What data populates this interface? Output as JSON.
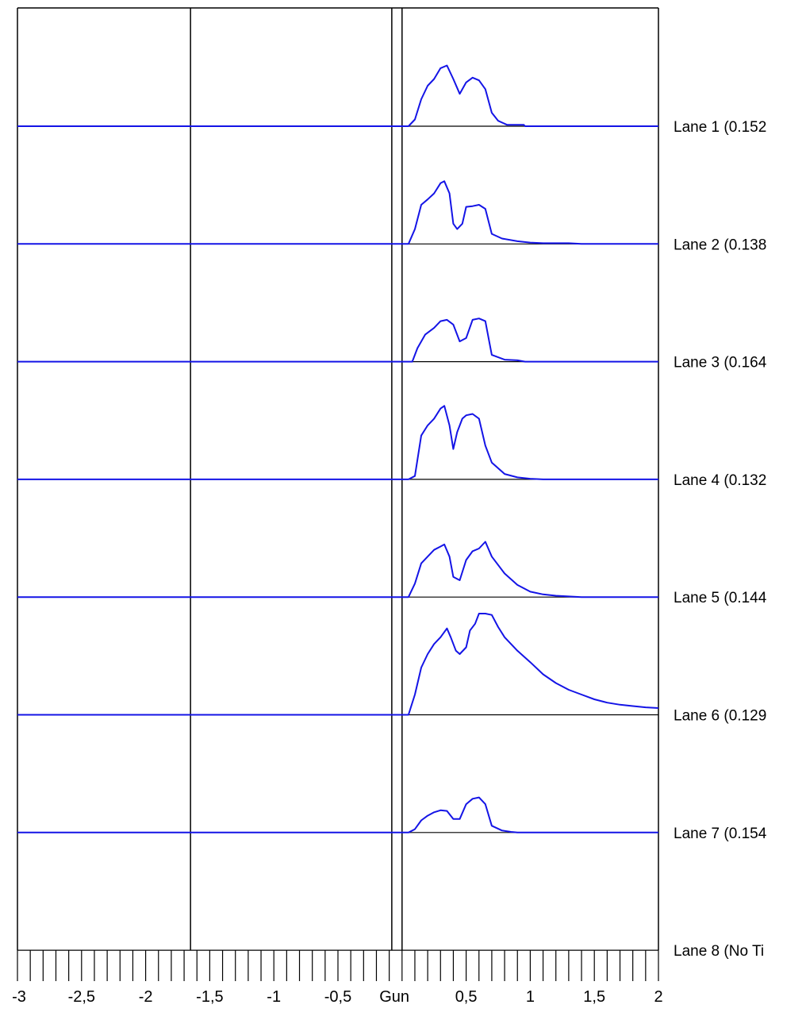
{
  "chart_data": {
    "type": "line",
    "xlim": [
      -3,
      2
    ],
    "colors": {
      "trace": "#1414e6",
      "frame": "#000000"
    },
    "x_tick_labels": [
      {
        "value": -3,
        "label": "-3"
      },
      {
        "value": -2.5,
        "label": "-2,5"
      },
      {
        "value": -2,
        "label": "-2"
      },
      {
        "value": -1.5,
        "label": "-1,5"
      },
      {
        "value": -1,
        "label": "-1"
      },
      {
        "value": -0.5,
        "label": "-0,5"
      },
      {
        "value": -0.06,
        "label": "Gun"
      },
      {
        "value": 0.5,
        "label": "0,5"
      },
      {
        "value": 1,
        "label": "1"
      },
      {
        "value": 1.5,
        "label": "1,5"
      },
      {
        "value": 2,
        "label": "2"
      }
    ],
    "minor_tick_step": 0.1,
    "vertical_markers": [
      -1.65,
      -0.08,
      0.0
    ],
    "lanes": [
      {
        "label": "Lane 1 (0.152",
        "points": [
          [
            -3,
            0
          ],
          [
            0.05,
            0
          ],
          [
            0.1,
            0.1
          ],
          [
            0.15,
            0.4
          ],
          [
            0.2,
            0.6
          ],
          [
            0.25,
            0.7
          ],
          [
            0.3,
            0.86
          ],
          [
            0.35,
            0.9
          ],
          [
            0.4,
            0.7
          ],
          [
            0.45,
            0.48
          ],
          [
            0.5,
            0.65
          ],
          [
            0.55,
            0.72
          ],
          [
            0.6,
            0.68
          ],
          [
            0.65,
            0.55
          ],
          [
            0.7,
            0.2
          ],
          [
            0.75,
            0.08
          ],
          [
            0.82,
            0.02
          ],
          [
            0.95,
            0.02
          ],
          [
            0.96,
            0
          ],
          [
            2,
            0
          ]
        ]
      },
      {
        "label": "Lane 2 (0.138",
        "points": [
          [
            -3,
            0
          ],
          [
            0.05,
            0
          ],
          [
            0.1,
            0.22
          ],
          [
            0.15,
            0.58
          ],
          [
            0.2,
            0.66
          ],
          [
            0.25,
            0.75
          ],
          [
            0.3,
            0.9
          ],
          [
            0.33,
            0.93
          ],
          [
            0.37,
            0.75
          ],
          [
            0.4,
            0.3
          ],
          [
            0.43,
            0.22
          ],
          [
            0.47,
            0.3
          ],
          [
            0.5,
            0.55
          ],
          [
            0.55,
            0.56
          ],
          [
            0.6,
            0.58
          ],
          [
            0.65,
            0.52
          ],
          [
            0.7,
            0.15
          ],
          [
            0.78,
            0.08
          ],
          [
            0.9,
            0.04
          ],
          [
            1.0,
            0.02
          ],
          [
            1.1,
            0.01
          ],
          [
            1.3,
            0.01
          ],
          [
            1.4,
            0
          ],
          [
            2,
            0
          ]
        ]
      },
      {
        "label": "Lane 3 (0.164",
        "points": [
          [
            -3,
            0
          ],
          [
            0.08,
            0
          ],
          [
            0.12,
            0.2
          ],
          [
            0.18,
            0.4
          ],
          [
            0.25,
            0.5
          ],
          [
            0.3,
            0.6
          ],
          [
            0.35,
            0.62
          ],
          [
            0.4,
            0.55
          ],
          [
            0.45,
            0.3
          ],
          [
            0.5,
            0.35
          ],
          [
            0.55,
            0.62
          ],
          [
            0.6,
            0.64
          ],
          [
            0.65,
            0.6
          ],
          [
            0.7,
            0.1
          ],
          [
            0.8,
            0.03
          ],
          [
            0.9,
            0.02
          ],
          [
            0.96,
            0
          ],
          [
            2,
            0
          ]
        ]
      },
      {
        "label": "Lane 4 (0.132",
        "points": [
          [
            -3,
            0
          ],
          [
            0.05,
            0
          ],
          [
            0.1,
            0.05
          ],
          [
            0.15,
            0.65
          ],
          [
            0.2,
            0.8
          ],
          [
            0.25,
            0.9
          ],
          [
            0.3,
            1.05
          ],
          [
            0.33,
            1.09
          ],
          [
            0.37,
            0.8
          ],
          [
            0.4,
            0.45
          ],
          [
            0.43,
            0.7
          ],
          [
            0.47,
            0.9
          ],
          [
            0.5,
            0.95
          ],
          [
            0.55,
            0.97
          ],
          [
            0.6,
            0.9
          ],
          [
            0.65,
            0.5
          ],
          [
            0.7,
            0.25
          ],
          [
            0.8,
            0.08
          ],
          [
            0.9,
            0.03
          ],
          [
            1.0,
            0.01
          ],
          [
            1.1,
            0
          ],
          [
            2,
            0
          ]
        ]
      },
      {
        "label": "Lane 5 (0.144",
        "points": [
          [
            -3,
            0
          ],
          [
            0.05,
            0
          ],
          [
            0.1,
            0.2
          ],
          [
            0.15,
            0.5
          ],
          [
            0.2,
            0.6
          ],
          [
            0.25,
            0.7
          ],
          [
            0.3,
            0.75
          ],
          [
            0.33,
            0.78
          ],
          [
            0.37,
            0.6
          ],
          [
            0.4,
            0.3
          ],
          [
            0.45,
            0.25
          ],
          [
            0.5,
            0.55
          ],
          [
            0.55,
            0.68
          ],
          [
            0.6,
            0.72
          ],
          [
            0.65,
            0.82
          ],
          [
            0.7,
            0.6
          ],
          [
            0.8,
            0.35
          ],
          [
            0.9,
            0.18
          ],
          [
            1.0,
            0.08
          ],
          [
            1.1,
            0.04
          ],
          [
            1.2,
            0.02
          ],
          [
            1.3,
            0.01
          ],
          [
            1.4,
            0
          ],
          [
            2,
            0
          ]
        ]
      },
      {
        "label": "Lane 6 (0.129",
        "points": [
          [
            -3,
            0
          ],
          [
            0.05,
            0
          ],
          [
            0.1,
            0.3
          ],
          [
            0.15,
            0.7
          ],
          [
            0.2,
            0.9
          ],
          [
            0.25,
            1.05
          ],
          [
            0.3,
            1.15
          ],
          [
            0.35,
            1.28
          ],
          [
            0.38,
            1.15
          ],
          [
            0.42,
            0.95
          ],
          [
            0.45,
            0.9
          ],
          [
            0.5,
            1.0
          ],
          [
            0.53,
            1.25
          ],
          [
            0.57,
            1.35
          ],
          [
            0.6,
            1.5
          ],
          [
            0.65,
            1.5
          ],
          [
            0.7,
            1.48
          ],
          [
            0.75,
            1.3
          ],
          [
            0.8,
            1.15
          ],
          [
            0.9,
            0.95
          ],
          [
            1.0,
            0.78
          ],
          [
            1.1,
            0.6
          ],
          [
            1.2,
            0.47
          ],
          [
            1.3,
            0.37
          ],
          [
            1.4,
            0.3
          ],
          [
            1.5,
            0.23
          ],
          [
            1.6,
            0.18
          ],
          [
            1.7,
            0.15
          ],
          [
            1.8,
            0.13
          ],
          [
            1.9,
            0.11
          ],
          [
            2.0,
            0.1
          ]
        ]
      },
      {
        "label": "Lane 7 (0.154",
        "points": [
          [
            -3,
            0
          ],
          [
            0.05,
            0
          ],
          [
            0.1,
            0.05
          ],
          [
            0.15,
            0.18
          ],
          [
            0.2,
            0.25
          ],
          [
            0.25,
            0.3
          ],
          [
            0.3,
            0.33
          ],
          [
            0.35,
            0.32
          ],
          [
            0.4,
            0.2
          ],
          [
            0.45,
            0.2
          ],
          [
            0.5,
            0.42
          ],
          [
            0.55,
            0.5
          ],
          [
            0.6,
            0.52
          ],
          [
            0.65,
            0.42
          ],
          [
            0.7,
            0.1
          ],
          [
            0.78,
            0.03
          ],
          [
            0.85,
            0.01
          ],
          [
            0.9,
            0
          ],
          [
            2,
            0
          ]
        ]
      },
      {
        "label": "Lane 8 (No Ti",
        "points": []
      }
    ]
  }
}
